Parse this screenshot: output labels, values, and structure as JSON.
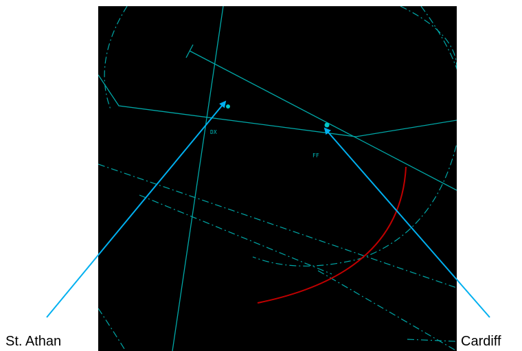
{
  "callouts": {
    "left": "St. Athan",
    "right": "Cardiff"
  },
  "radar": {
    "codes": [
      "DX",
      "FF"
    ]
  },
  "colors": {
    "background": "#000000",
    "radar_lines": "#00a8a8",
    "beacon": "#00c8c8",
    "arc": "#c00000",
    "arrow": "#00b0f0"
  }
}
